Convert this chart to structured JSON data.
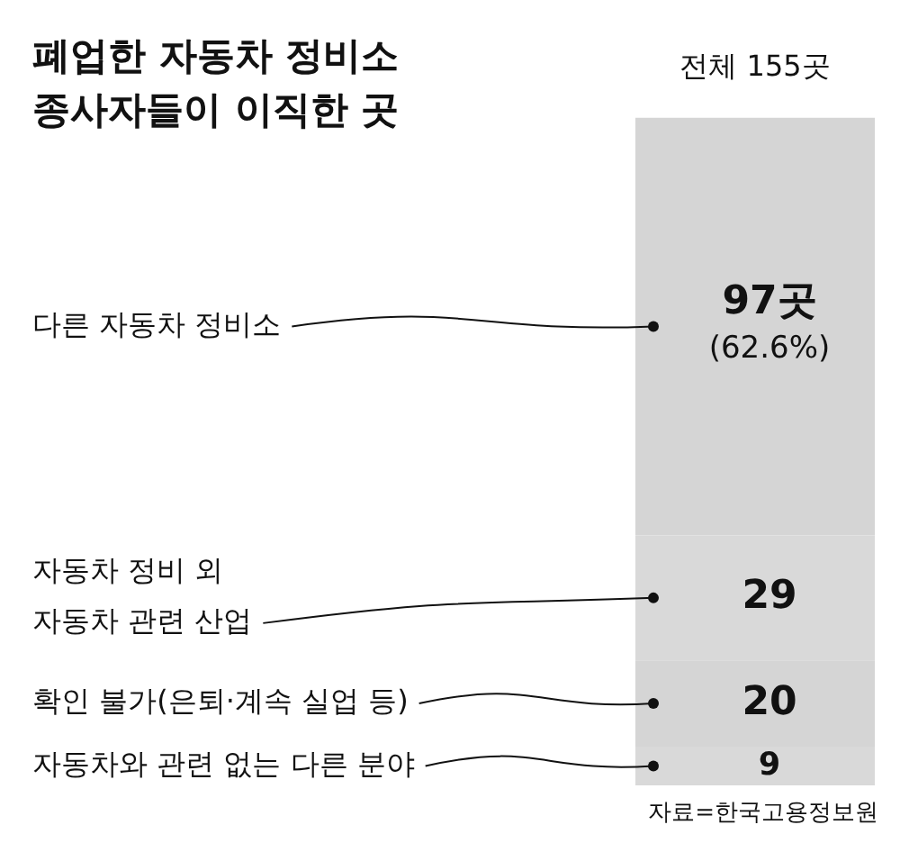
{
  "chart_data": {
    "type": "bar",
    "stacked": true,
    "title": "폐업한 자동차 정비소\n종사자들이 이직한 곳",
    "categories": [
      "전체 155곳"
    ],
    "series": [
      {
        "name": "자동차와 관련 없는 다른 분야",
        "color": "#d9d9d9",
        "values": [
          9
        ],
        "value_labels": [
          "9"
        ]
      },
      {
        "name": "확인 불가(은퇴·계속 실업 등)",
        "color": "#d5d5d5",
        "values": [
          20
        ],
        "value_labels": [
          "20"
        ]
      },
      {
        "name": "자동차 정비 외\n자동차 관련 산업",
        "color": "#d9d9d9",
        "values": [
          29
        ],
        "value_labels": [
          "29"
        ]
      },
      {
        "name": "다른 자동차 정비소",
        "color": "#d5d5d5",
        "values": [
          97
        ],
        "value_labels": [
          "97곳\n(62.6%)"
        ]
      }
    ],
    "legend": false,
    "grid": false,
    "annotations": [
      "자료=한국고용정보원"
    ]
  }
}
